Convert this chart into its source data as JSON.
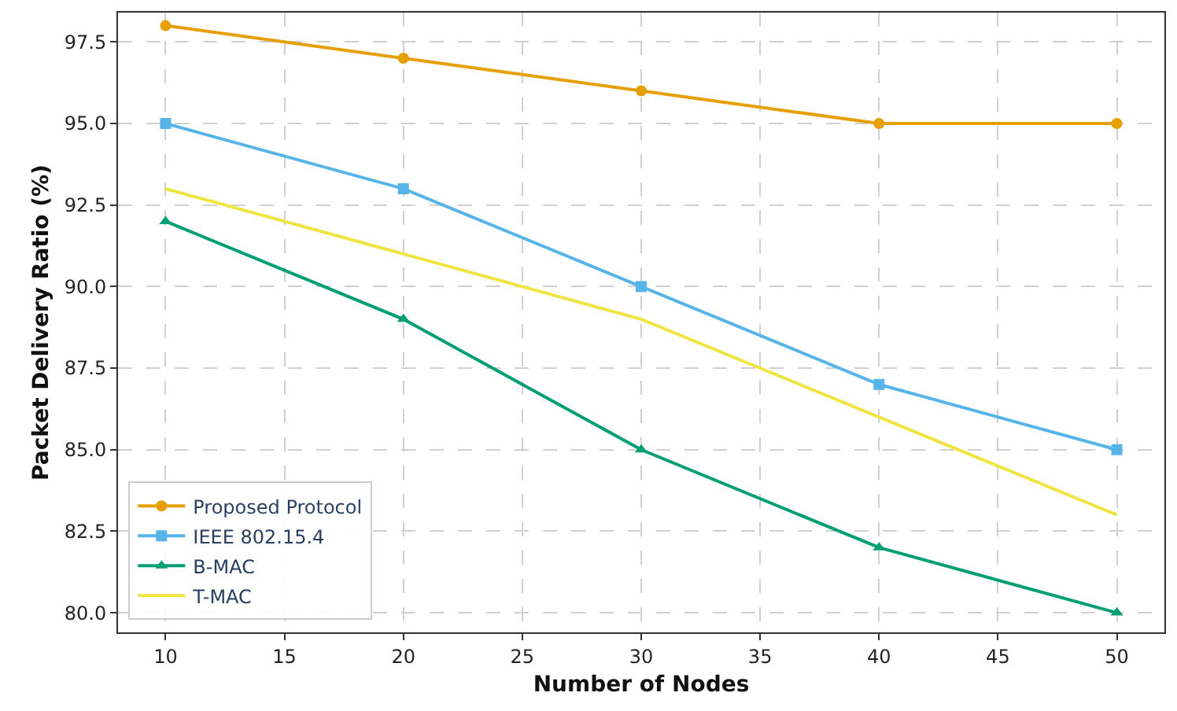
{
  "chart_data": {
    "type": "line",
    "xlabel": "Number of Nodes",
    "ylabel": "Packet Delivery Ratio (%)",
    "x": [
      10,
      20,
      30,
      40,
      50
    ],
    "series": [
      {
        "name": "Proposed Protocol",
        "color": "#e69f00",
        "marker": "circle",
        "values": [
          98,
          97,
          96,
          95,
          95
        ]
      },
      {
        "name": "IEEE 802.15.4",
        "color": "#56b4e9",
        "marker": "square",
        "values": [
          95,
          93,
          90,
          87,
          85
        ]
      },
      {
        "name": "B-MAC",
        "color": "#009e73",
        "marker": "triangle",
        "values": [
          92,
          89,
          85,
          82,
          80
        ]
      },
      {
        "name": "T-MAC",
        "color": "#f0e442",
        "marker": "none",
        "values": [
          93,
          91,
          89,
          86,
          83
        ]
      }
    ],
    "xlim": [
      8,
      52
    ],
    "xticks": [
      10,
      15,
      20,
      25,
      30,
      35,
      40,
      45,
      50
    ],
    "ylim": [
      79.4,
      98.4
    ],
    "yticks": [
      {
        "value": 80,
        "label": "80.0"
      },
      {
        "value": 82.5,
        "label": "82.5"
      },
      {
        "value": 85,
        "label": "85.0"
      },
      {
        "value": 87.5,
        "label": "87.5"
      },
      {
        "value": 90,
        "label": "90.0"
      },
      {
        "value": 92.5,
        "label": "92.5"
      },
      {
        "value": 95,
        "label": "95.0"
      },
      {
        "value": 97.5,
        "label": "97.5"
      }
    ],
    "grid": true,
    "legend": "bottom left",
    "line_style": "solid"
  }
}
